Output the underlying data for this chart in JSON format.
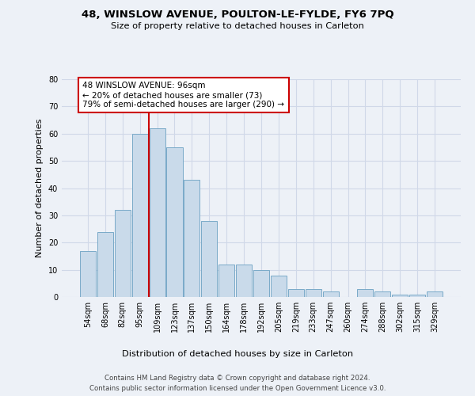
{
  "title1": "48, WINSLOW AVENUE, POULTON-LE-FYLDE, FY6 7PQ",
  "title2": "Size of property relative to detached houses in Carleton",
  "xlabel": "Distribution of detached houses by size in Carleton",
  "ylabel": "Number of detached properties",
  "categories": [
    "54sqm",
    "68sqm",
    "82sqm",
    "95sqm",
    "109sqm",
    "123sqm",
    "137sqm",
    "150sqm",
    "164sqm",
    "178sqm",
    "192sqm",
    "205sqm",
    "219sqm",
    "233sqm",
    "247sqm",
    "260sqm",
    "274sqm",
    "288sqm",
    "302sqm",
    "315sqm",
    "329sqm"
  ],
  "values": [
    17,
    24,
    32,
    60,
    62,
    55,
    43,
    28,
    12,
    12,
    10,
    8,
    3,
    3,
    2,
    0,
    3,
    2,
    1,
    1,
    2
  ],
  "bar_color": "#c9daea",
  "bar_edge_color": "#7aaac8",
  "vline_color": "#cc0000",
  "vline_pos": 3.5,
  "ylim": [
    0,
    80
  ],
  "yticks": [
    0,
    10,
    20,
    30,
    40,
    50,
    60,
    70,
    80
  ],
  "annotation_line1": "48 WINSLOW AVENUE: 96sqm",
  "annotation_line2": "← 20% of detached houses are smaller (73)",
  "annotation_line3": "79% of semi-detached houses are larger (290) →",
  "annotation_box_facecolor": "#ffffff",
  "annotation_box_edgecolor": "#cc0000",
  "footer1": "Contains HM Land Registry data © Crown copyright and database right 2024.",
  "footer2": "Contains public sector information licensed under the Open Government Licence v3.0.",
  "bg_color": "#edf1f7",
  "grid_color": "#d0d8e8"
}
